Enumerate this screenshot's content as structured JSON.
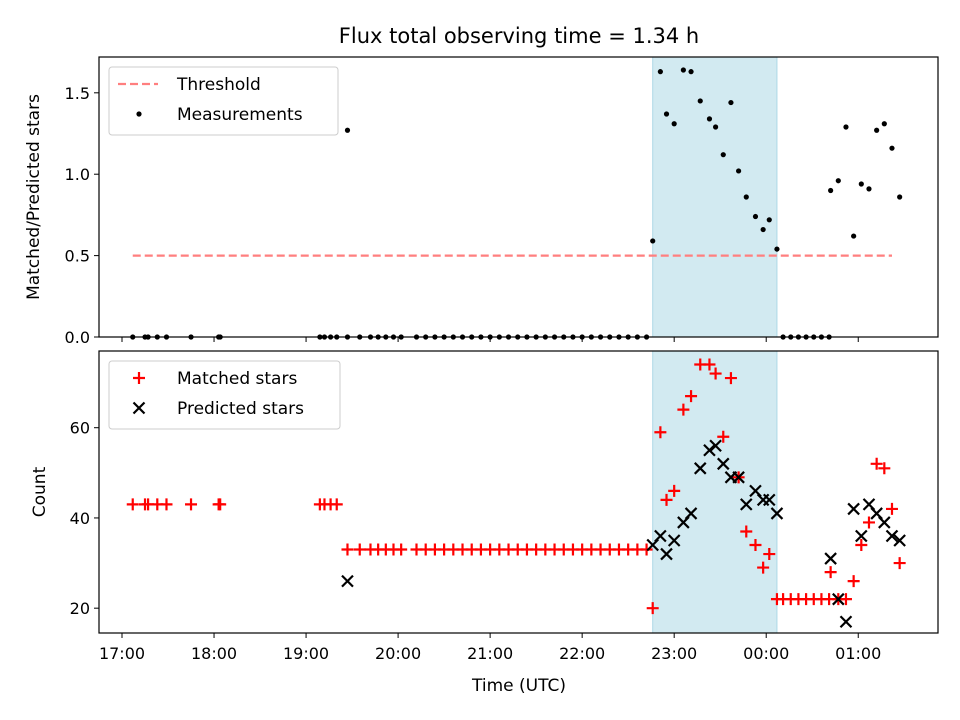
{
  "title": "Flux total observing time = 1.34 h",
  "colors": {
    "threshold": "#ff7f7f",
    "measurement": "#000000",
    "matched": "#ff0000",
    "predicted": "#000000",
    "shade": "#add8e6"
  },
  "chart_data": [
    {
      "type": "scatter",
      "ylabel": "Matched/Predicted stars",
      "xlim": [
        "16:45",
        "25:52"
      ],
      "ylim": [
        0,
        1.72
      ],
      "x_ticks": [
        "17:00",
        "18:00",
        "19:00",
        "20:00",
        "21:00",
        "22:00",
        "23:00",
        "00:00",
        "01:00"
      ],
      "y_ticks": [
        "0.0",
        "0.5",
        "1.0",
        "1.5"
      ],
      "shaded_interval": [
        "22:46",
        "24:07"
      ],
      "legend": {
        "position": "upper left",
        "entries": [
          "Threshold",
          "Measurements"
        ]
      },
      "threshold": {
        "name": "Threshold",
        "x": [
          "17:07",
          "25:22"
        ],
        "y": 0.5,
        "style": "dashed"
      },
      "series": [
        {
          "name": "Measurements",
          "marker": "dot",
          "points": [
            [
              "17:07",
              0
            ],
            [
              "17:15",
              0
            ],
            [
              "17:17",
              0
            ],
            [
              "17:23",
              0
            ],
            [
              "17:29",
              0
            ],
            [
              "17:45",
              0
            ],
            [
              "18:03",
              0
            ],
            [
              "18:04",
              0
            ],
            [
              "19:09",
              0
            ],
            [
              "19:12",
              0
            ],
            [
              "19:16",
              0
            ],
            [
              "19:20",
              0
            ],
            [
              "19:27",
              0
            ],
            [
              "19:35",
              0
            ],
            [
              "19:42",
              0
            ],
            [
              "19:47",
              0
            ],
            [
              "19:52",
              0
            ],
            [
              "19:57",
              0
            ],
            [
              "20:02",
              0
            ],
            [
              "20:12",
              0
            ],
            [
              "20:18",
              0
            ],
            [
              "20:24",
              0
            ],
            [
              "20:30",
              0
            ],
            [
              "20:36",
              0
            ],
            [
              "20:42",
              0
            ],
            [
              "20:48",
              0
            ],
            [
              "20:54",
              0
            ],
            [
              "21:00",
              0
            ],
            [
              "21:06",
              0
            ],
            [
              "21:12",
              0
            ],
            [
              "21:18",
              0
            ],
            [
              "21:24",
              0
            ],
            [
              "21:30",
              0
            ],
            [
              "21:36",
              0
            ],
            [
              "21:42",
              0
            ],
            [
              "21:48",
              0
            ],
            [
              "21:54",
              0
            ],
            [
              "22:00",
              0
            ],
            [
              "22:06",
              0
            ],
            [
              "22:12",
              0
            ],
            [
              "22:18",
              0
            ],
            [
              "22:24",
              0
            ],
            [
              "22:30",
              0
            ],
            [
              "22:36",
              0
            ],
            [
              "22:42",
              0
            ],
            [
              "19:27",
              1.27
            ],
            [
              "22:46",
              0.59
            ],
            [
              "22:51",
              1.63
            ],
            [
              "22:55",
              1.37
            ],
            [
              "23:00",
              1.31
            ],
            [
              "23:06",
              1.64
            ],
            [
              "23:11",
              1.63
            ],
            [
              "23:17",
              1.45
            ],
            [
              "23:23",
              1.34
            ],
            [
              "23:27",
              1.29
            ],
            [
              "23:32",
              1.12
            ],
            [
              "23:37",
              1.44
            ],
            [
              "23:42",
              1.02
            ],
            [
              "23:47",
              0.86
            ],
            [
              "23:53",
              0.74
            ],
            [
              "23:58",
              0.66
            ],
            [
              "24:02",
              0.72
            ],
            [
              "24:07",
              0.54
            ],
            [
              "24:11",
              0
            ],
            [
              "24:16",
              0
            ],
            [
              "24:21",
              0
            ],
            [
              "24:26",
              0
            ],
            [
              "24:31",
              0
            ],
            [
              "24:36",
              0
            ],
            [
              "24:41",
              0
            ],
            [
              "24:42",
              0.9
            ],
            [
              "24:47",
              0.96
            ],
            [
              "24:52",
              1.29
            ],
            [
              "24:57",
              0.62
            ],
            [
              "25:02",
              0.94
            ],
            [
              "25:07",
              0.91
            ],
            [
              "25:12",
              1.27
            ],
            [
              "25:17",
              1.31
            ],
            [
              "25:22",
              1.16
            ],
            [
              "25:27",
              0.86
            ]
          ]
        }
      ]
    },
    {
      "type": "scatter",
      "xlabel": "Time (UTC)",
      "ylabel": "Count",
      "xlim": [
        "16:45",
        "25:52"
      ],
      "ylim": [
        14.5,
        77
      ],
      "x_ticks": [
        "17:00",
        "18:00",
        "19:00",
        "20:00",
        "21:00",
        "22:00",
        "23:00",
        "00:00",
        "01:00"
      ],
      "y_ticks": [
        "20",
        "40",
        "60"
      ],
      "shaded_interval": [
        "22:46",
        "24:07"
      ],
      "legend": {
        "position": "upper left",
        "entries": [
          "Matched stars",
          "Predicted stars"
        ]
      },
      "series": [
        {
          "name": "Matched stars",
          "marker": "plus",
          "points": [
            [
              "17:07",
              43
            ],
            [
              "17:15",
              43
            ],
            [
              "17:17",
              43
            ],
            [
              "17:23",
              43
            ],
            [
              "17:29",
              43
            ],
            [
              "17:45",
              43
            ],
            [
              "18:03",
              43
            ],
            [
              "18:04",
              43
            ],
            [
              "19:09",
              43
            ],
            [
              "19:12",
              43
            ],
            [
              "19:16",
              43
            ],
            [
              "19:20",
              43
            ],
            [
              "19:27",
              33
            ],
            [
              "19:35",
              33
            ],
            [
              "19:42",
              33
            ],
            [
              "19:47",
              33
            ],
            [
              "19:52",
              33
            ],
            [
              "19:57",
              33
            ],
            [
              "20:02",
              33
            ],
            [
              "20:12",
              33
            ],
            [
              "20:18",
              33
            ],
            [
              "20:24",
              33
            ],
            [
              "20:30",
              33
            ],
            [
              "20:36",
              33
            ],
            [
              "20:42",
              33
            ],
            [
              "20:48",
              33
            ],
            [
              "20:54",
              33
            ],
            [
              "21:00",
              33
            ],
            [
              "21:06",
              33
            ],
            [
              "21:12",
              33
            ],
            [
              "21:18",
              33
            ],
            [
              "21:24",
              33
            ],
            [
              "21:30",
              33
            ],
            [
              "21:36",
              33
            ],
            [
              "21:42",
              33
            ],
            [
              "21:48",
              33
            ],
            [
              "21:54",
              33
            ],
            [
              "22:00",
              33
            ],
            [
              "22:06",
              33
            ],
            [
              "22:12",
              33
            ],
            [
              "22:18",
              33
            ],
            [
              "22:24",
              33
            ],
            [
              "22:30",
              33
            ],
            [
              "22:36",
              33
            ],
            [
              "22:42",
              33
            ],
            [
              "22:46",
              20
            ],
            [
              "22:51",
              59
            ],
            [
              "22:55",
              44
            ],
            [
              "23:00",
              46
            ],
            [
              "23:06",
              64
            ],
            [
              "23:11",
              67
            ],
            [
              "23:17",
              74
            ],
            [
              "23:23",
              74
            ],
            [
              "23:27",
              72
            ],
            [
              "23:32",
              58
            ],
            [
              "23:37",
              71
            ],
            [
              "23:42",
              49
            ],
            [
              "23:47",
              37
            ],
            [
              "23:53",
              34
            ],
            [
              "23:58",
              29
            ],
            [
              "24:02",
              32
            ],
            [
              "24:07",
              22
            ],
            [
              "24:11",
              22
            ],
            [
              "24:16",
              22
            ],
            [
              "24:21",
              22
            ],
            [
              "24:26",
              22
            ],
            [
              "24:31",
              22
            ],
            [
              "24:36",
              22
            ],
            [
              "24:41",
              22
            ],
            [
              "24:42",
              28
            ],
            [
              "24:47",
              22
            ],
            [
              "24:52",
              22
            ],
            [
              "24:57",
              26
            ],
            [
              "25:02",
              34
            ],
            [
              "25:07",
              39
            ],
            [
              "25:12",
              52
            ],
            [
              "25:17",
              51
            ],
            [
              "25:22",
              42
            ],
            [
              "25:27",
              30
            ]
          ]
        },
        {
          "name": "Predicted stars",
          "marker": "x",
          "points": [
            [
              "19:27",
              26
            ],
            [
              "22:46",
              34
            ],
            [
              "22:51",
              36
            ],
            [
              "22:55",
              32
            ],
            [
              "23:00",
              35
            ],
            [
              "23:06",
              39
            ],
            [
              "23:11",
              41
            ],
            [
              "23:17",
              51
            ],
            [
              "23:23",
              55
            ],
            [
              "23:27",
              56
            ],
            [
              "23:32",
              52
            ],
            [
              "23:37",
              49
            ],
            [
              "23:42",
              49
            ],
            [
              "23:47",
              43
            ],
            [
              "23:53",
              46
            ],
            [
              "23:58",
              44
            ],
            [
              "24:02",
              44
            ],
            [
              "24:07",
              41
            ],
            [
              "24:42",
              31
            ],
            [
              "24:47",
              22
            ],
            [
              "24:52",
              17
            ],
            [
              "24:57",
              42
            ],
            [
              "25:02",
              36
            ],
            [
              "25:07",
              43
            ],
            [
              "25:12",
              41
            ],
            [
              "25:17",
              39
            ],
            [
              "25:22",
              36
            ],
            [
              "25:27",
              35
            ]
          ]
        }
      ]
    }
  ]
}
